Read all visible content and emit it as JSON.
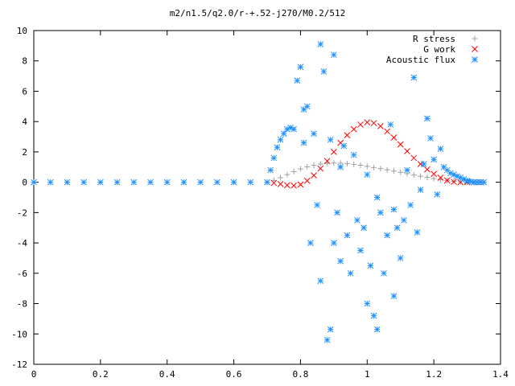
{
  "chart_data": {
    "type": "scatter",
    "title": "m2/n1.5/q2.0/r-+.52-j270/M0.2/512",
    "xlabel": "",
    "ylabel": "",
    "xlim": [
      0,
      1.4
    ],
    "ylim": [
      -12,
      10
    ],
    "x_ticks": [
      "0",
      "0.2",
      "0.4",
      "0.6",
      "0.8",
      "1",
      "1.2",
      "1.4"
    ],
    "y_ticks": [
      "-12",
      "-10",
      "-8",
      "-6",
      "-4",
      "-2",
      "0",
      "2",
      "4",
      "6",
      "8",
      "10"
    ],
    "grid": false,
    "legend_position": "top-right",
    "series": [
      {
        "name": "R stress",
        "marker": "plus",
        "color": "#a0a0a0",
        "points": [
          [
            0.7,
            0.0
          ],
          [
            0.72,
            0.12
          ],
          [
            0.74,
            0.3
          ],
          [
            0.76,
            0.5
          ],
          [
            0.78,
            0.7
          ],
          [
            0.8,
            0.88
          ],
          [
            0.82,
            1.02
          ],
          [
            0.84,
            1.12
          ],
          [
            0.86,
            1.2
          ],
          [
            0.88,
            1.25
          ],
          [
            0.9,
            1.27
          ],
          [
            0.92,
            1.26
          ],
          [
            0.94,
            1.23
          ],
          [
            0.96,
            1.18
          ],
          [
            0.98,
            1.12
          ],
          [
            1.0,
            1.05
          ],
          [
            1.02,
            0.97
          ],
          [
            1.04,
            0.9
          ],
          [
            1.06,
            0.82
          ],
          [
            1.08,
            0.74
          ],
          [
            1.1,
            0.66
          ],
          [
            1.12,
            0.57
          ],
          [
            1.14,
            0.48
          ],
          [
            1.16,
            0.4
          ],
          [
            1.18,
            0.32
          ],
          [
            1.2,
            0.24
          ],
          [
            1.22,
            0.17
          ],
          [
            1.24,
            0.11
          ],
          [
            1.26,
            0.06
          ],
          [
            1.28,
            0.03
          ],
          [
            1.3,
            0.01
          ],
          [
            1.32,
            0.0
          ],
          [
            1.34,
            0.0
          ]
        ]
      },
      {
        "name": "G work",
        "marker": "cross",
        "color": "#ff0000",
        "points": [
          [
            0.72,
            -0.05
          ],
          [
            0.74,
            -0.12
          ],
          [
            0.76,
            -0.2
          ],
          [
            0.78,
            -0.22
          ],
          [
            0.8,
            -0.15
          ],
          [
            0.82,
            0.1
          ],
          [
            0.84,
            0.45
          ],
          [
            0.86,
            0.9
          ],
          [
            0.88,
            1.4
          ],
          [
            0.9,
            2.0
          ],
          [
            0.92,
            2.6
          ],
          [
            0.94,
            3.1
          ],
          [
            0.96,
            3.5
          ],
          [
            0.98,
            3.8
          ],
          [
            1.0,
            3.95
          ],
          [
            1.02,
            3.9
          ],
          [
            1.04,
            3.7
          ],
          [
            1.06,
            3.35
          ],
          [
            1.08,
            2.95
          ],
          [
            1.1,
            2.5
          ],
          [
            1.12,
            2.05
          ],
          [
            1.14,
            1.6
          ],
          [
            1.16,
            1.2
          ],
          [
            1.18,
            0.85
          ],
          [
            1.2,
            0.55
          ],
          [
            1.22,
            0.3
          ],
          [
            1.24,
            0.12
          ],
          [
            1.26,
            0.03
          ],
          [
            1.28,
            0.0
          ],
          [
            1.3,
            0.0
          ],
          [
            1.32,
            0.0
          ],
          [
            1.34,
            0.0
          ]
        ]
      },
      {
        "name": "Acoustic flux",
        "marker": "star",
        "color": "#1e90ff",
        "points": [
          [
            0.0,
            0
          ],
          [
            0.05,
            0
          ],
          [
            0.1,
            0
          ],
          [
            0.15,
            0
          ],
          [
            0.2,
            0
          ],
          [
            0.25,
            0
          ],
          [
            0.3,
            0
          ],
          [
            0.35,
            0
          ],
          [
            0.4,
            0
          ],
          [
            0.45,
            0
          ],
          [
            0.5,
            0
          ],
          [
            0.55,
            0
          ],
          [
            0.6,
            0
          ],
          [
            0.65,
            0
          ],
          [
            0.7,
            0
          ],
          [
            0.71,
            0.8
          ],
          [
            0.72,
            1.6
          ],
          [
            0.73,
            2.3
          ],
          [
            0.74,
            2.8
          ],
          [
            0.75,
            3.2
          ],
          [
            0.76,
            3.5
          ],
          [
            0.77,
            3.6
          ],
          [
            0.78,
            3.5
          ],
          [
            0.79,
            6.7
          ],
          [
            0.8,
            7.6
          ],
          [
            0.81,
            4.8
          ],
          [
            0.81,
            2.6
          ],
          [
            0.82,
            5.0
          ],
          [
            0.83,
            -4.0
          ],
          [
            0.84,
            3.2
          ],
          [
            0.85,
            -1.5
          ],
          [
            0.86,
            9.1
          ],
          [
            0.86,
            -6.5
          ],
          [
            0.87,
            7.3
          ],
          [
            0.88,
            -10.4
          ],
          [
            0.89,
            2.8
          ],
          [
            0.89,
            -9.7
          ],
          [
            0.9,
            8.4
          ],
          [
            0.9,
            -4.0
          ],
          [
            0.91,
            -2.0
          ],
          [
            0.92,
            1.0
          ],
          [
            0.92,
            -5.2
          ],
          [
            0.93,
            2.4
          ],
          [
            0.94,
            -3.5
          ],
          [
            0.95,
            -6.0
          ],
          [
            0.96,
            1.8
          ],
          [
            0.97,
            -2.5
          ],
          [
            0.98,
            -4.5
          ],
          [
            0.99,
            -3.0
          ],
          [
            1.0,
            0.5
          ],
          [
            1.0,
            -8.0
          ],
          [
            1.01,
            -5.5
          ],
          [
            1.02,
            -8.8
          ],
          [
            1.03,
            -9.7
          ],
          [
            1.03,
            -1.0
          ],
          [
            1.04,
            -2.0
          ],
          [
            1.05,
            -6.0
          ],
          [
            1.06,
            -3.5
          ],
          [
            1.07,
            3.8
          ],
          [
            1.08,
            -1.8
          ],
          [
            1.08,
            -7.5
          ],
          [
            1.09,
            -3.0
          ],
          [
            1.1,
            -5.0
          ],
          [
            1.11,
            -2.5
          ],
          [
            1.12,
            0.8
          ],
          [
            1.13,
            -1.5
          ],
          [
            1.14,
            6.9
          ],
          [
            1.15,
            -3.3
          ],
          [
            1.16,
            -0.5
          ],
          [
            1.17,
            1.2
          ],
          [
            1.18,
            4.2
          ],
          [
            1.19,
            2.9
          ],
          [
            1.2,
            1.5
          ],
          [
            1.21,
            -0.8
          ],
          [
            1.22,
            2.2
          ],
          [
            1.23,
            1.0
          ],
          [
            1.24,
            0.8
          ],
          [
            1.25,
            0.6
          ],
          [
            1.26,
            0.5
          ],
          [
            1.27,
            0.4
          ],
          [
            1.28,
            0.3
          ],
          [
            1.29,
            0.2
          ],
          [
            1.3,
            0.1
          ],
          [
            1.31,
            0.05
          ],
          [
            1.32,
            0
          ],
          [
            1.33,
            0
          ],
          [
            1.34,
            0
          ],
          [
            1.35,
            0
          ]
        ]
      }
    ]
  }
}
